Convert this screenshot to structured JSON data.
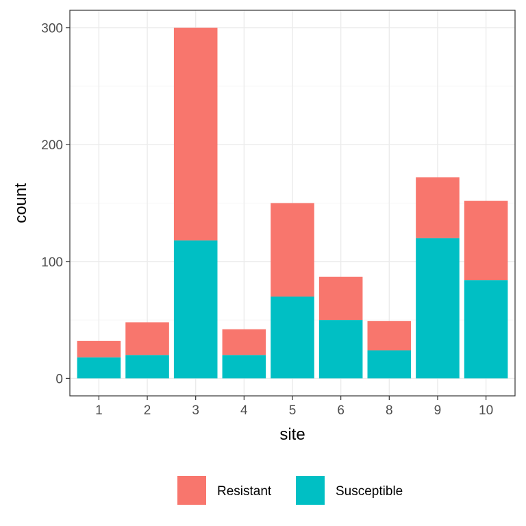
{
  "chart_data": {
    "type": "bar",
    "stacked": true,
    "xlabel": "site",
    "ylabel": "count",
    "categories": [
      "1",
      "2",
      "3",
      "4",
      "5",
      "6",
      "8",
      "9",
      "10"
    ],
    "series": [
      {
        "name": "Resistant",
        "color": "#F8766D",
        "values": [
          14,
          28,
          182,
          22,
          80,
          37,
          25,
          52,
          68
        ]
      },
      {
        "name": "Susceptible",
        "color": "#00BFC4",
        "values": [
          18,
          20,
          118,
          20,
          70,
          50,
          24,
          120,
          84
        ]
      }
    ],
    "stack_order_bottom_to_top": [
      "Susceptible",
      "Resistant"
    ],
    "ylim": [
      -15,
      315
    ],
    "yticks": [
      0,
      100,
      200,
      300
    ],
    "grid": true,
    "theme": "bw",
    "legend_position": "bottom"
  }
}
